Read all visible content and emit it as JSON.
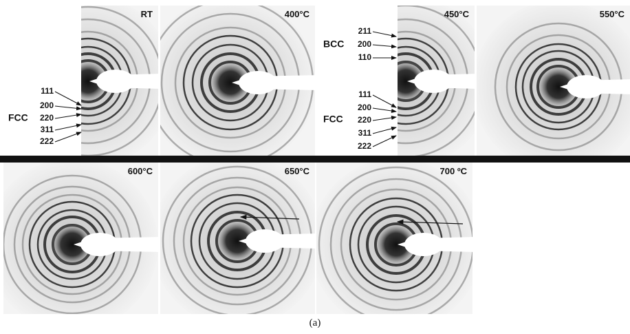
{
  "panels": [
    {
      "label": "RT"
    },
    {
      "label": "400°C"
    },
    {
      "label": "450°C"
    },
    {
      "label": "550°C"
    },
    {
      "label": "600°C"
    },
    {
      "label": "650°C"
    },
    {
      "label": "700 ºC"
    }
  ],
  "annotations": [
    {
      "phase": "FCC",
      "indices": [
        "111",
        "200",
        "220",
        "311",
        "222"
      ]
    },
    {
      "phase": "BCC",
      "indices": [
        "211",
        "200",
        "110"
      ]
    },
    {
      "phase": "FCC",
      "indices": [
        "111",
        "200",
        "220",
        "311",
        "222"
      ]
    }
  ],
  "caption": "(a)"
}
